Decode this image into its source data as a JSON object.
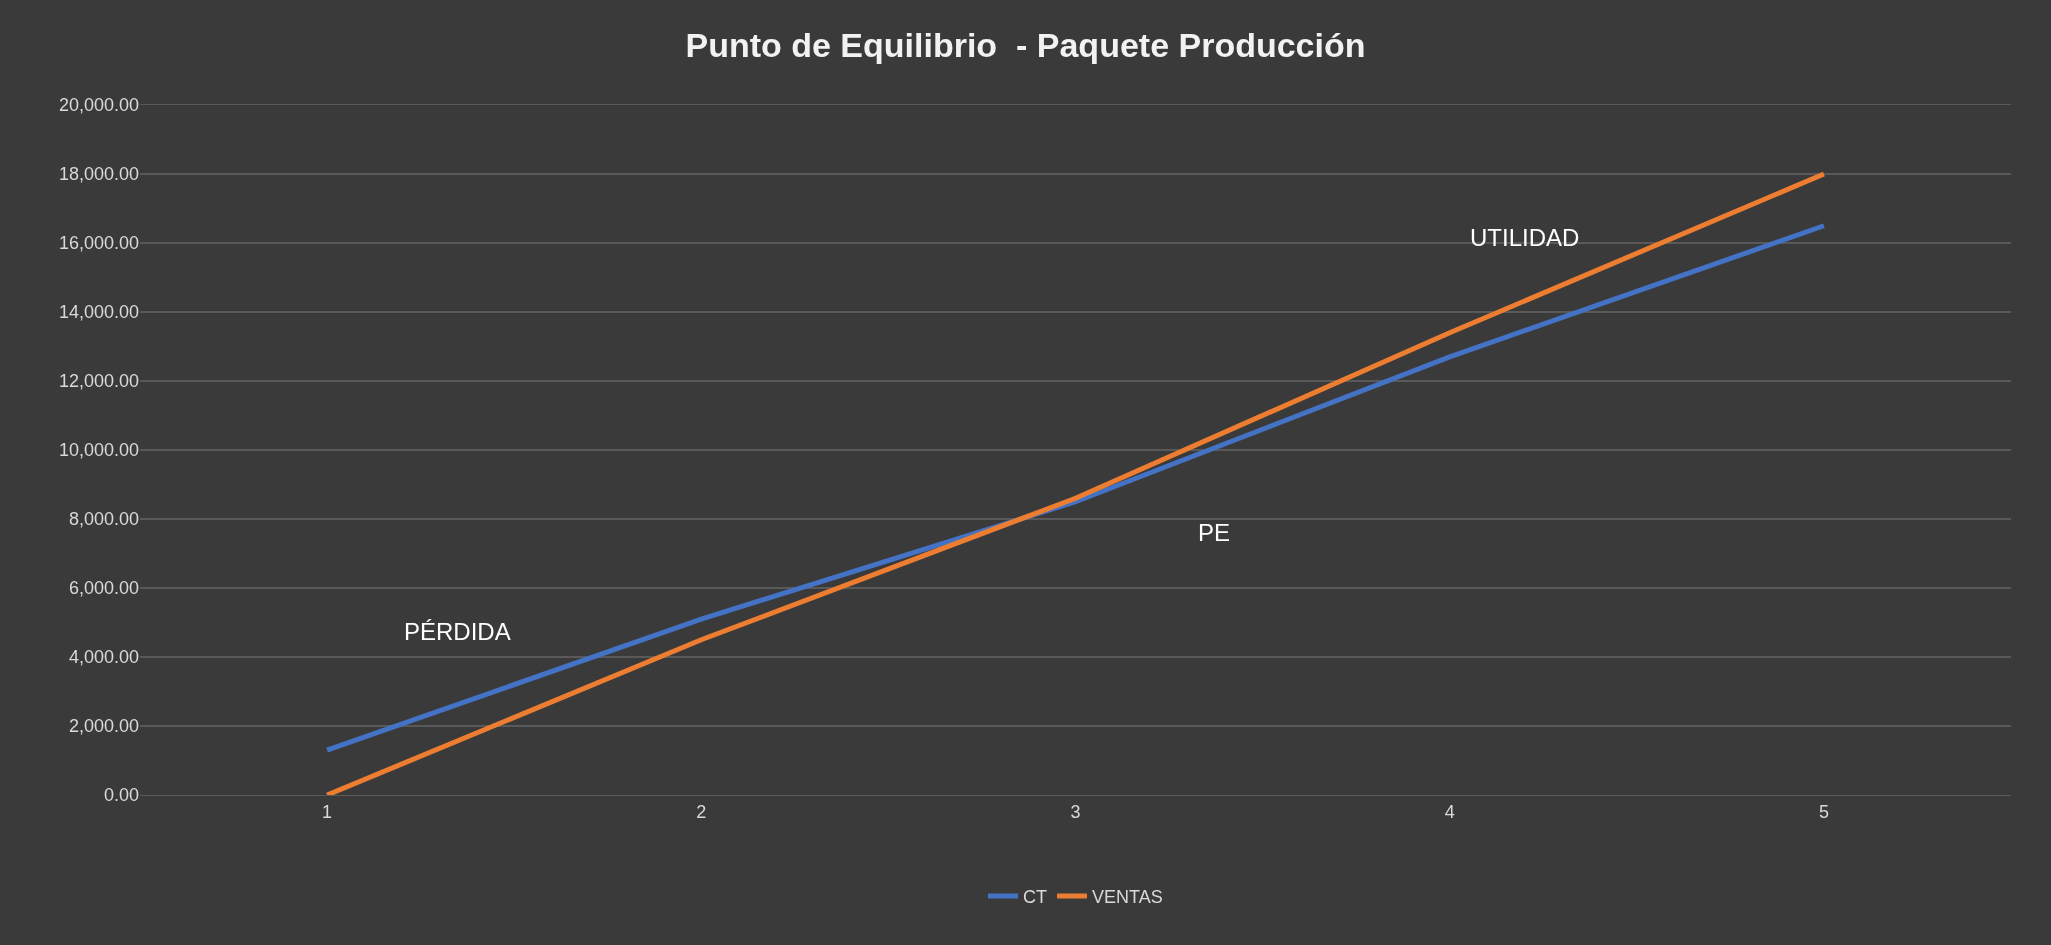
{
  "chart_data": {
    "type": "line",
    "title": "Punto de Equilibrio  - Paquete Producción",
    "x": [
      1,
      2,
      3,
      4,
      5
    ],
    "series": [
      {
        "name": "CT",
        "color": "#4472c4",
        "values": [
          1300,
          5100,
          8500,
          12700,
          16500
        ]
      },
      {
        "name": "VENTAS",
        "color": "#ed7d31",
        "values": [
          0,
          4500,
          8600,
          13400,
          18000
        ]
      }
    ],
    "xlim": [
      0.5,
      5.5
    ],
    "xticks": [
      1,
      2,
      3,
      4,
      5
    ],
    "ylim": [
      0,
      20000
    ],
    "yticks": [
      {
        "value": 0,
        "label": "0.00"
      },
      {
        "value": 2000,
        "label": "2,000.00"
      },
      {
        "value": 4000,
        "label": "4,000.00"
      },
      {
        "value": 6000,
        "label": "6,000.00"
      },
      {
        "value": 8000,
        "label": "8,000.00"
      },
      {
        "value": 10000,
        "label": "10,000.00"
      },
      {
        "value": 12000,
        "label": "12,000.00"
      },
      {
        "value": 14000,
        "label": "14,000.00"
      },
      {
        "value": 16000,
        "label": "16,000.00"
      },
      {
        "value": 18000,
        "label": "18,000.00"
      },
      {
        "value": 20000,
        "label": "20,000.00"
      }
    ],
    "annotations": [
      "PÉRDIDA",
      "PE",
      "UTILIDAD"
    ],
    "grid": "y",
    "legend": "bottom",
    "marker": "none",
    "line_style": "solid"
  }
}
